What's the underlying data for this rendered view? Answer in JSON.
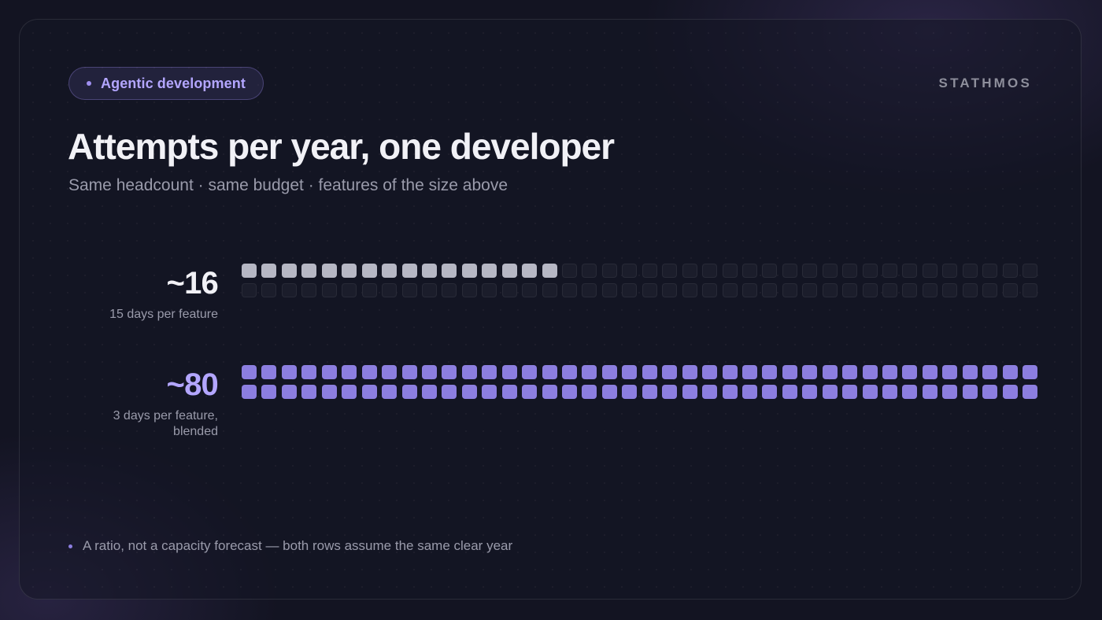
{
  "header": {
    "tag_label": "Agentic development",
    "brand": "STATHMOS",
    "title": "Attempts per year, one developer",
    "subtitle": "Same headcount · same budget · features of the size above"
  },
  "chart_data": {
    "type": "waffle",
    "total_slots_per_row": 80,
    "rows": [
      {
        "value_label": "~16",
        "caption": "15 days per feature",
        "value": 16,
        "color": "#b6b7c4"
      },
      {
        "value_label": "~80",
        "caption": "3 days per feature, blended",
        "value": 80,
        "color": "#8c7ee0"
      }
    ]
  },
  "footnote": {
    "text": "A ratio, not a capacity forecast — both rows assume the same clear year"
  },
  "colors": {
    "accent": "#8c7ee0",
    "accent_text": "#b3a6ff",
    "neutral": "#b6b7c4",
    "background": "#131422"
  }
}
